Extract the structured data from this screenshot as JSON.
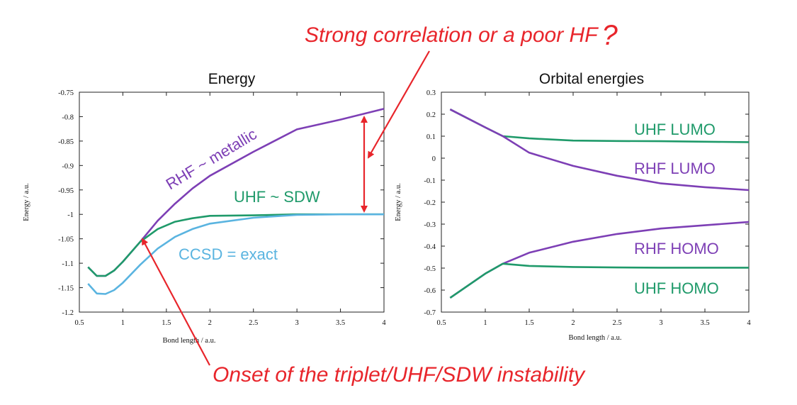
{
  "annotations": {
    "top": "Strong correlation or a poor HF",
    "top_mark": "?",
    "bottom": "Onset of the triplet/UHF/SDW instability",
    "color": "#e8252b"
  },
  "colors": {
    "rhf": "#7d3fb5",
    "uhf": "#1f9a6a",
    "ccsd": "#5ab4e0",
    "arrow": "#e8252b"
  },
  "chart_data": [
    {
      "type": "line",
      "title": "Energy",
      "xlabel": "Bond length / a.u.",
      "ylabel": "Energy / a.u.",
      "xlim": [
        0.5,
        4
      ],
      "ylim": [
        -1.2,
        -0.75
      ],
      "xticks": [
        "0.5",
        "1",
        "1.5",
        "2",
        "2.5",
        "3",
        "3.5",
        "4"
      ],
      "yticks": [
        "-0.75",
        "-0.8",
        "-0.85",
        "-0.9",
        "-0.95",
        "-1",
        "-1.05",
        "-1.1",
        "-1.15",
        "-1.2"
      ],
      "grid": false,
      "series": [
        {
          "name": "RHF ~ metallic",
          "color": "#7d3fb5",
          "x": [
            0.6,
            0.7,
            0.8,
            0.9,
            1.0,
            1.2,
            1.4,
            1.6,
            1.8,
            2.0,
            2.5,
            3.0,
            3.5,
            4.0
          ],
          "y": [
            -1.108,
            -1.126,
            -1.126,
            -1.115,
            -1.097,
            -1.056,
            -1.013,
            -0.978,
            -0.947,
            -0.921,
            -0.872,
            -0.826,
            -0.806,
            -0.784
          ]
        },
        {
          "name": "UHF ~ SDW",
          "color": "#1f9a6a",
          "x": [
            0.6,
            0.7,
            0.8,
            0.9,
            1.0,
            1.2,
            1.4,
            1.6,
            1.8,
            2.0,
            2.5,
            3.0,
            3.5,
            4.0
          ],
          "y": [
            -1.108,
            -1.126,
            -1.126,
            -1.115,
            -1.097,
            -1.056,
            -1.03,
            -1.015,
            -1.008,
            -1.003,
            -1.002,
            -1.0,
            -1.0,
            -1.0
          ]
        },
        {
          "name": "CCSD = exact",
          "color": "#5ab4e0",
          "x": [
            0.6,
            0.7,
            0.8,
            0.9,
            1.0,
            1.2,
            1.4,
            1.6,
            1.8,
            2.0,
            2.5,
            3.0,
            3.5,
            4.0
          ],
          "y": [
            -1.142,
            -1.162,
            -1.163,
            -1.155,
            -1.14,
            -1.103,
            -1.07,
            -1.046,
            -1.03,
            -1.019,
            -1.007,
            -1.001,
            -1.0,
            -1.0
          ]
        }
      ],
      "labels": [
        {
          "text": "RHF ~ metallic",
          "color": "#7d3fb5"
        },
        {
          "text": "UHF ~ SDW",
          "color": "#1f9a6a"
        },
        {
          "text": "CCSD = exact",
          "color": "#5ab4e0"
        }
      ]
    },
    {
      "type": "line",
      "title": "Orbital energies",
      "xlabel": "Bond length / a.u.",
      "ylabel": "Energy / a.u.",
      "xlim": [
        0.5,
        4
      ],
      "ylim": [
        -0.7,
        0.3
      ],
      "xticks": [
        "0.5",
        "1",
        "1.5",
        "2",
        "2.5",
        "3",
        "3.5",
        "4"
      ],
      "yticks": [
        "0.3",
        "0.2",
        "0.1",
        "0",
        "-0.1",
        "-0.2",
        "-0.3",
        "-0.4",
        "-0.5",
        "-0.6",
        "-0.7"
      ],
      "grid": false,
      "series": [
        {
          "name": "UHF LUMO",
          "color": "#1f9a6a",
          "x": [
            0.6,
            1.0,
            1.2,
            1.5,
            2.0,
            2.5,
            3.0,
            3.5,
            4.0
          ],
          "y": [
            0.222,
            0.14,
            0.1,
            0.09,
            0.08,
            0.078,
            0.077,
            0.075,
            0.073
          ]
        },
        {
          "name": "RHF LUMO",
          "color": "#7d3fb5",
          "x": [
            0.6,
            1.0,
            1.2,
            1.5,
            2.0,
            2.5,
            3.0,
            3.5,
            4.0
          ],
          "y": [
            0.222,
            0.14,
            0.1,
            0.025,
            -0.035,
            -0.08,
            -0.115,
            -0.132,
            -0.145
          ]
        },
        {
          "name": "RHF HOMO",
          "color": "#7d3fb5",
          "x": [
            0.6,
            1.0,
            1.2,
            1.5,
            2.0,
            2.5,
            3.0,
            3.5,
            4.0
          ],
          "y": [
            -0.635,
            -0.525,
            -0.48,
            -0.43,
            -0.38,
            -0.345,
            -0.32,
            -0.305,
            -0.29
          ]
        },
        {
          "name": "UHF HOMO",
          "color": "#1f9a6a",
          "x": [
            0.6,
            1.0,
            1.2,
            1.5,
            2.0,
            2.5,
            3.0,
            3.5,
            4.0
          ],
          "y": [
            -0.635,
            -0.525,
            -0.48,
            -0.49,
            -0.495,
            -0.497,
            -0.498,
            -0.498,
            -0.498
          ]
        }
      ],
      "labels": [
        {
          "text": "UHF LUMO",
          "color": "#1f9a6a"
        },
        {
          "text": "RHF LUMO",
          "color": "#7d3fb5"
        },
        {
          "text": "RHF HOMO",
          "color": "#7d3fb5"
        },
        {
          "text": "UHF HOMO",
          "color": "#1f9a6a"
        }
      ]
    }
  ]
}
